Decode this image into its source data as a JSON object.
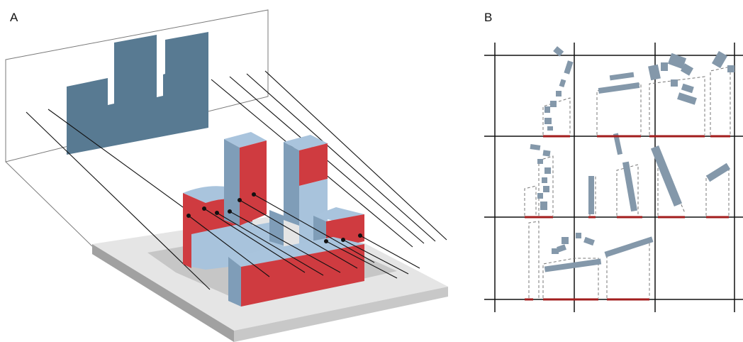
{
  "panels": {
    "a": {
      "label": "A"
    },
    "b": {
      "label": "B"
    }
  },
  "colors": {
    "facade_red": "#cf3b40",
    "roof_blue": "#a9c4dd",
    "side_blue": "#7f9db8",
    "silhouette_blue": "#587a92",
    "ground_light": "#e6e6e6",
    "ground_dark": "#a3a3a3",
    "building_plan": "#8498aa",
    "grid_line": "#111111",
    "projection_red": "#a21d1d",
    "dash_line": "#777777"
  }
}
